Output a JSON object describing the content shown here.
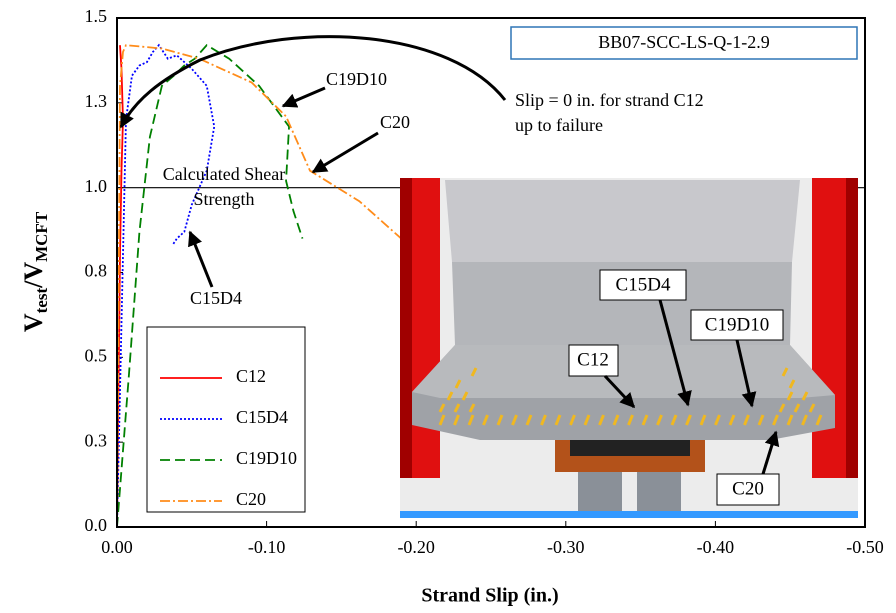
{
  "chart_data": {
    "type": "line",
    "title": "BB07-SCC-LS-Q-1-2.9",
    "xlabel": "Strand Slip (in.)",
    "ylabel": [
      "V",
      "test",
      "/V",
      "MCFT"
    ],
    "xlim": [
      0,
      -0.5
    ],
    "ylim": [
      0,
      1.5
    ],
    "xticks": [
      {
        "value": 0,
        "label": "0.00"
      },
      {
        "value": -0.1,
        "label": "-0.10"
      },
      {
        "value": -0.2,
        "label": "-0.20"
      },
      {
        "value": -0.3,
        "label": "-0.30"
      },
      {
        "value": -0.4,
        "label": "-0.40"
      },
      {
        "value": -0.5,
        "label": "-0.50"
      }
    ],
    "yticks": [
      {
        "value": 0,
        "label": "0.0"
      },
      {
        "value": 0.25,
        "label": "0.3"
      },
      {
        "value": 0.5,
        "label": "0.5"
      },
      {
        "value": 0.75,
        "label": "0.8"
      },
      {
        "value": 1,
        "label": "1.0"
      },
      {
        "value": 1.25,
        "label": "1.3"
      },
      {
        "value": 1.5,
        "label": "1.5"
      }
    ],
    "grid": false,
    "hline": 1,
    "series": [
      {
        "name": "C12",
        "color": "#ff0000",
        "dash": "none",
        "x": [
          0,
          -0.001,
          -0.002,
          -0.003,
          -0.004,
          -0.003,
          -0.002
        ],
        "values": [
          0,
          0.4,
          0.8,
          1.05,
          1.2,
          1.35,
          1.42
        ]
      },
      {
        "name": "C15D4",
        "color": "#0000ff",
        "dash": "2,2",
        "x": [
          0,
          -0.003,
          -0.006,
          -0.01,
          -0.015,
          -0.02,
          -0.024,
          -0.028,
          -0.034,
          -0.04,
          -0.05,
          -0.06,
          -0.065,
          -0.06,
          -0.05,
          -0.045,
          -0.04,
          -0.037
        ],
        "values": [
          0,
          0.6,
          1.2,
          1.33,
          1.36,
          1.37,
          1.4,
          1.42,
          1.38,
          1.39,
          1.35,
          1.3,
          1.18,
          1.05,
          0.95,
          0.87,
          0.85,
          0.83
        ]
      },
      {
        "name": "C19D10",
        "color": "#008000",
        "dash": "10,5",
        "x": [
          0,
          -0.008,
          -0.015,
          -0.022,
          -0.03,
          -0.038,
          -0.045,
          -0.052,
          -0.06,
          -0.075,
          -0.095,
          -0.115,
          -0.113,
          -0.118,
          -0.124
        ],
        "values": [
          0,
          0.45,
          0.87,
          1.15,
          1.3,
          1.33,
          1.36,
          1.38,
          1.42,
          1.38,
          1.3,
          1.18,
          1.02,
          0.93,
          0.85
        ]
      },
      {
        "name": "C20",
        "color": "#ff8c1a",
        "dash": "10,3,2,3",
        "x": [
          0,
          -0.001,
          -0.002,
          -0.004,
          -0.006,
          -0.03,
          -0.055,
          -0.09,
          -0.113,
          -0.129,
          -0.162,
          -0.19
        ],
        "values": [
          0,
          0.6,
          1.3,
          1.4,
          1.42,
          1.41,
          1.38,
          1.31,
          1.21,
          1.05,
          0.96,
          0.85
        ]
      }
    ],
    "annotations": [
      "C19D10",
      "C20",
      "C15D4",
      "Slip = 0 in. for strand C12",
      "up to failure",
      "Calculated Shear",
      "Strength"
    ],
    "inset_labels": [
      "C15D4",
      "C12",
      "C19D10",
      "C20"
    ]
  }
}
